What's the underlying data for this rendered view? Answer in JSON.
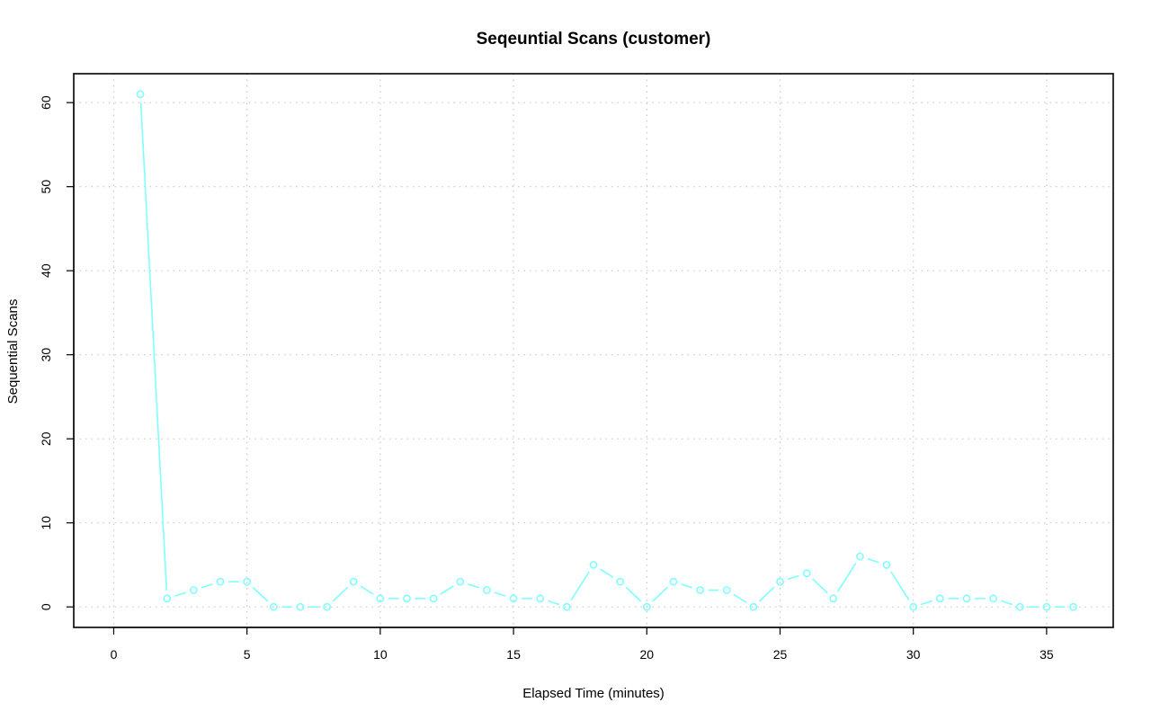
{
  "chart_data": {
    "type": "line",
    "title": "Seqeuntial Scans (customer)",
    "xlabel": "Elapsed Time (minutes)",
    "ylabel": "Sequential Scans",
    "xlim": [
      -1.5,
      37.5
    ],
    "ylim": [
      -2.44,
      63.44
    ],
    "x_ticks": [
      0,
      5,
      10,
      15,
      20,
      25,
      30,
      35
    ],
    "y_ticks": [
      0,
      10,
      20,
      30,
      40,
      50,
      60
    ],
    "grid": true,
    "color": "#80ffff",
    "series": [
      {
        "x": [
          1,
          2,
          3,
          4,
          5,
          6,
          7,
          8,
          9,
          10,
          11,
          12,
          13,
          14,
          15,
          16,
          17,
          18,
          19,
          20,
          21,
          22,
          23,
          24,
          25,
          26,
          27,
          28,
          29,
          30,
          31,
          32,
          33,
          34,
          35,
          36
        ],
        "values": [
          61,
          1,
          2,
          3,
          3,
          0,
          0,
          0,
          3,
          1,
          1,
          1,
          3,
          2,
          1,
          1,
          0,
          5,
          3,
          0,
          3,
          2,
          2,
          0,
          3,
          4,
          1,
          6,
          5,
          0,
          1,
          1,
          1,
          0,
          0,
          0
        ]
      }
    ]
  }
}
